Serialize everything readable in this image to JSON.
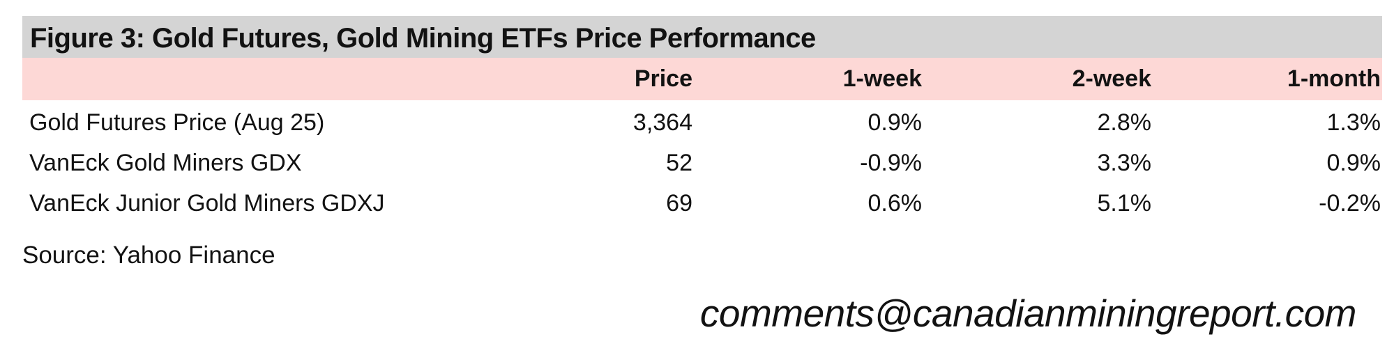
{
  "figure": {
    "title": "Figure 3: Gold Futures, Gold Mining ETFs Price Performance",
    "source": "Source: Yahoo Finance",
    "contact_email": "comments@canadianminingreport.com"
  },
  "chart_data": {
    "type": "table",
    "title": "Figure 3: Gold Futures, Gold Mining ETFs Price Performance",
    "columns": [
      "",
      "Price",
      "1-week",
      "2-week",
      "1-month"
    ],
    "rows": [
      {
        "label": "Gold Futures Price (Aug 25)",
        "price": "3,364",
        "week1": "0.9%",
        "week2": "2.8%",
        "month1": "1.3%"
      },
      {
        "label": "VanEck Gold Miners GDX",
        "price": "52",
        "week1": "-0.9%",
        "week2": "3.3%",
        "month1": "0.9%"
      },
      {
        "label": "VanEck Junior Gold Miners GDXJ",
        "price": "69",
        "week1": "0.6%",
        "week2": "5.1%",
        "month1": "-0.2%"
      }
    ],
    "source": "Source: Yahoo Finance",
    "layout": {
      "title_bar_bg": "#d4d4d4",
      "header_row_bg": "#fdd8d6",
      "text_color": "#121212",
      "numeric_alignment": "right"
    }
  }
}
